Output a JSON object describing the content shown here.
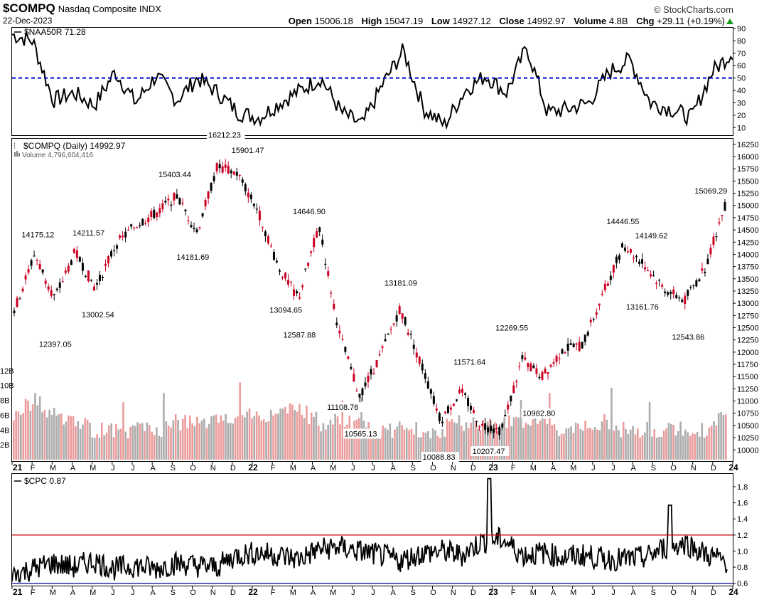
{
  "header": {
    "symbol": "$COMPQ",
    "name": "Nasdaq Composite",
    "exchange": "INDX",
    "date": "22-Dec-2023",
    "credit": "© StockCharts.com",
    "open_label": "Open",
    "open": "15006.18",
    "high_label": "High",
    "high": "15047.19",
    "low_label": "Low",
    "low": "14927.12",
    "close_label": "Close",
    "close": "14992.97",
    "volume_label": "Volume",
    "volume": "4.8B",
    "chg_label": "Chg",
    "chg": "+29.11 (+0.19%)"
  },
  "panels": {
    "naa50r_legend": "$NAA50R 71.28",
    "price_legend": "$COMPQ (Daily) 14992.97",
    "volume_legend": "Volume 4,796,604,416",
    "cpc_legend": "$CPC 0.87"
  },
  "colors": {
    "up": "#000000",
    "down": "#cc0022",
    "volume_up": "#9e9e9e",
    "volume_down": "#e88a8a",
    "naa50r_line": "#000000",
    "naa50r_ref": "#0000cc",
    "cpc_ref_high": "#cc0000",
    "cpc_ref_low": "#000099",
    "credit_up": "#1a9a1a"
  },
  "chart_data": [
    {
      "type": "line",
      "title": "$NAA50R 71.28",
      "ylim": [
        5,
        90
      ],
      "yticks": [
        "90",
        "80",
        "70",
        "60",
        "50",
        "40",
        "30",
        "20",
        "10"
      ],
      "reference_line": 50,
      "x": [
        "2021-01",
        "2021-02",
        "2021-03",
        "2021-04",
        "2021-05",
        "2021-06",
        "2021-07",
        "2021-08",
        "2021-09",
        "2021-10",
        "2021-11",
        "2021-12",
        "2022-01",
        "2022-02",
        "2022-03",
        "2022-04",
        "2022-05",
        "2022-06",
        "2022-07",
        "2022-08",
        "2022-09",
        "2022-10",
        "2022-11",
        "2022-12",
        "2023-01",
        "2023-02",
        "2023-03",
        "2023-04",
        "2023-05",
        "2023-06",
        "2023-07",
        "2023-08",
        "2023-09",
        "2023-10",
        "2023-11",
        "2023-12"
      ],
      "series": [
        {
          "values": [
            85,
            80,
            32,
            38,
            28,
            55,
            30,
            52,
            32,
            50,
            38,
            22,
            18,
            30,
            40,
            50,
            22,
            12,
            45,
            72,
            25,
            12,
            40,
            52,
            38,
            75,
            22,
            25,
            30,
            55,
            65,
            30,
            25,
            18,
            55,
            71
          ]
        }
      ]
    },
    {
      "type": "line",
      "title": "$COMPQ (Daily) 14992.97",
      "ylim": [
        9800,
        16350
      ],
      "yticks": [
        "16250",
        "16000",
        "15750",
        "15500",
        "15250",
        "15000",
        "14750",
        "14500",
        "14250",
        "14000",
        "13750",
        "13500",
        "13250",
        "13000",
        "12750",
        "12500",
        "12250",
        "12000",
        "11750",
        "11500",
        "11250",
        "11000",
        "10750",
        "10500",
        "10250",
        "10000"
      ],
      "xticks": [
        "21",
        "F",
        "M",
        "A",
        "M",
        "J",
        "J",
        "A",
        "S",
        "O",
        "N",
        "D",
        "22",
        "F",
        "M",
        "A",
        "M",
        "J",
        "J",
        "A",
        "S",
        "O",
        "N",
        "D",
        "23",
        "F",
        "M",
        "A",
        "M",
        "J",
        "J",
        "A",
        "S",
        "O",
        "N",
        "D",
        "24"
      ],
      "x": [
        "2021-01",
        "2021-02",
        "2021-03",
        "2021-04",
        "2021-05",
        "2021-06",
        "2021-07",
        "2021-08",
        "2021-09",
        "2021-10",
        "2021-11",
        "2021-12",
        "2022-01",
        "2022-02",
        "2022-03",
        "2022-04",
        "2022-05",
        "2022-06",
        "2022-07",
        "2022-08",
        "2022-09",
        "2022-10",
        "2022-11",
        "2022-12",
        "2023-01",
        "2023-02",
        "2023-03",
        "2023-04",
        "2023-05",
        "2023-06",
        "2023-07",
        "2023-08",
        "2023-09",
        "2023-10",
        "2023-11",
        "2023-12"
      ],
      "series": [
        {
          "values": [
            12850,
            14000,
            13100,
            14050,
            13300,
            14200,
            14600,
            14850,
            15200,
            14450,
            15800,
            15650,
            14900,
            13750,
            13100,
            14600,
            12400,
            11100,
            11900,
            12900,
            11800,
            10600,
            11200,
            10500,
            10400,
            11850,
            11500,
            12050,
            12150,
            13200,
            14200,
            13800,
            13300,
            13050,
            13700,
            15000
          ]
        }
      ],
      "annotations": [
        {
          "x": "2021-02-12",
          "y": 14175.12,
          "label": "14175.12"
        },
        {
          "x": "2021-03-08",
          "y": 12397.05,
          "label": "12397.05"
        },
        {
          "x": "2021-04-29",
          "y": 14211.57,
          "label": "14211.57"
        },
        {
          "x": "2021-05-12",
          "y": 13002.54,
          "label": "13002.54"
        },
        {
          "x": "2021-09-07",
          "y": 15403.44,
          "label": "15403.44"
        },
        {
          "x": "2021-10-04",
          "y": 14181.69,
          "label": "14181.69"
        },
        {
          "x": "2021-11-22",
          "y": 16212.23,
          "label": "16212.23"
        },
        {
          "x": "2021-12-27",
          "y": 15901.47,
          "label": "15901.47"
        },
        {
          "x": "2022-02-24",
          "y": 13094.65,
          "label": "13094.65"
        },
        {
          "x": "2022-03-14",
          "y": 12587.88,
          "label": "12587.88"
        },
        {
          "x": "2022-03-29",
          "y": 14646.9,
          "label": "14646.90"
        },
        {
          "x": "2022-05-20",
          "y": 11108.76,
          "label": "11108.76"
        },
        {
          "x": "2022-06-16",
          "y": 10565.13,
          "label": "10565.13"
        },
        {
          "x": "2022-08-16",
          "y": 13181.09,
          "label": "13181.09"
        },
        {
          "x": "2022-10-13",
          "y": 10088.83,
          "label": "10088.83"
        },
        {
          "x": "2022-11-30",
          "y": 11571.64,
          "label": "11571.64"
        },
        {
          "x": "2022-12-28",
          "y": 10207.47,
          "label": "10207.47"
        },
        {
          "x": "2023-02-02",
          "y": 12269.55,
          "label": "12269.55"
        },
        {
          "x": "2023-03-13",
          "y": 10982.8,
          "label": "10982.80"
        },
        {
          "x": "2023-07-19",
          "y": 14446.55,
          "label": "14446.55"
        },
        {
          "x": "2023-08-18",
          "y": 13161.76,
          "label": "13161.76"
        },
        {
          "x": "2023-09-01",
          "y": 14149.62,
          "label": "14149.62"
        },
        {
          "x": "2023-10-27",
          "y": 12543.86,
          "label": "12543.86"
        },
        {
          "x": "2023-12-20",
          "y": 15069.29,
          "label": "15069.29"
        }
      ],
      "volume": {
        "yticks": [
          "12B",
          "10B",
          "8B",
          "6B",
          "4B",
          "2B"
        ],
        "ylim": [
          0,
          14
        ],
        "values_billion": [
          6,
          8,
          6,
          5,
          4,
          4,
          4,
          4,
          5,
          5,
          5,
          6,
          6,
          6,
          7,
          5,
          5,
          5,
          4,
          4,
          4,
          4,
          5,
          5,
          5,
          5,
          5,
          4,
          4,
          5,
          4,
          4,
          4,
          4,
          4,
          6
        ]
      }
    },
    {
      "type": "line",
      "title": "$CPC 0.87",
      "ylim": [
        0.58,
        1.95
      ],
      "yticks": [
        "1.8",
        "1.6",
        "1.4",
        "1.2",
        "1.0",
        "0.8",
        "0.6"
      ],
      "reference_lines": [
        1.2,
        0.6
      ],
      "x": [
        "2021-01",
        "2021-02",
        "2021-03",
        "2021-04",
        "2021-05",
        "2021-06",
        "2021-07",
        "2021-08",
        "2021-09",
        "2021-10",
        "2021-11",
        "2021-12",
        "2022-01",
        "2022-02",
        "2022-03",
        "2022-04",
        "2022-05",
        "2022-06",
        "2022-07",
        "2022-08",
        "2022-09",
        "2022-10",
        "2022-11",
        "2022-12",
        "2023-01",
        "2023-02",
        "2023-03",
        "2023-04",
        "2023-05",
        "2023-06",
        "2023-07",
        "2023-08",
        "2023-09",
        "2023-10",
        "2023-11",
        "2023-12"
      ],
      "series": [
        {
          "values": [
            0.7,
            0.78,
            0.85,
            0.8,
            0.88,
            0.78,
            0.82,
            0.78,
            0.85,
            0.82,
            0.8,
            0.95,
            0.98,
            0.95,
            0.9,
            1.02,
            1.05,
            1.0,
            0.95,
            0.88,
            0.97,
            1.0,
            0.95,
            1.12,
            1.15,
            0.95,
            0.98,
            0.92,
            0.95,
            0.9,
            0.9,
            0.92,
            1.05,
            1.1,
            0.95,
            0.87
          ]
        }
      ]
    }
  ]
}
